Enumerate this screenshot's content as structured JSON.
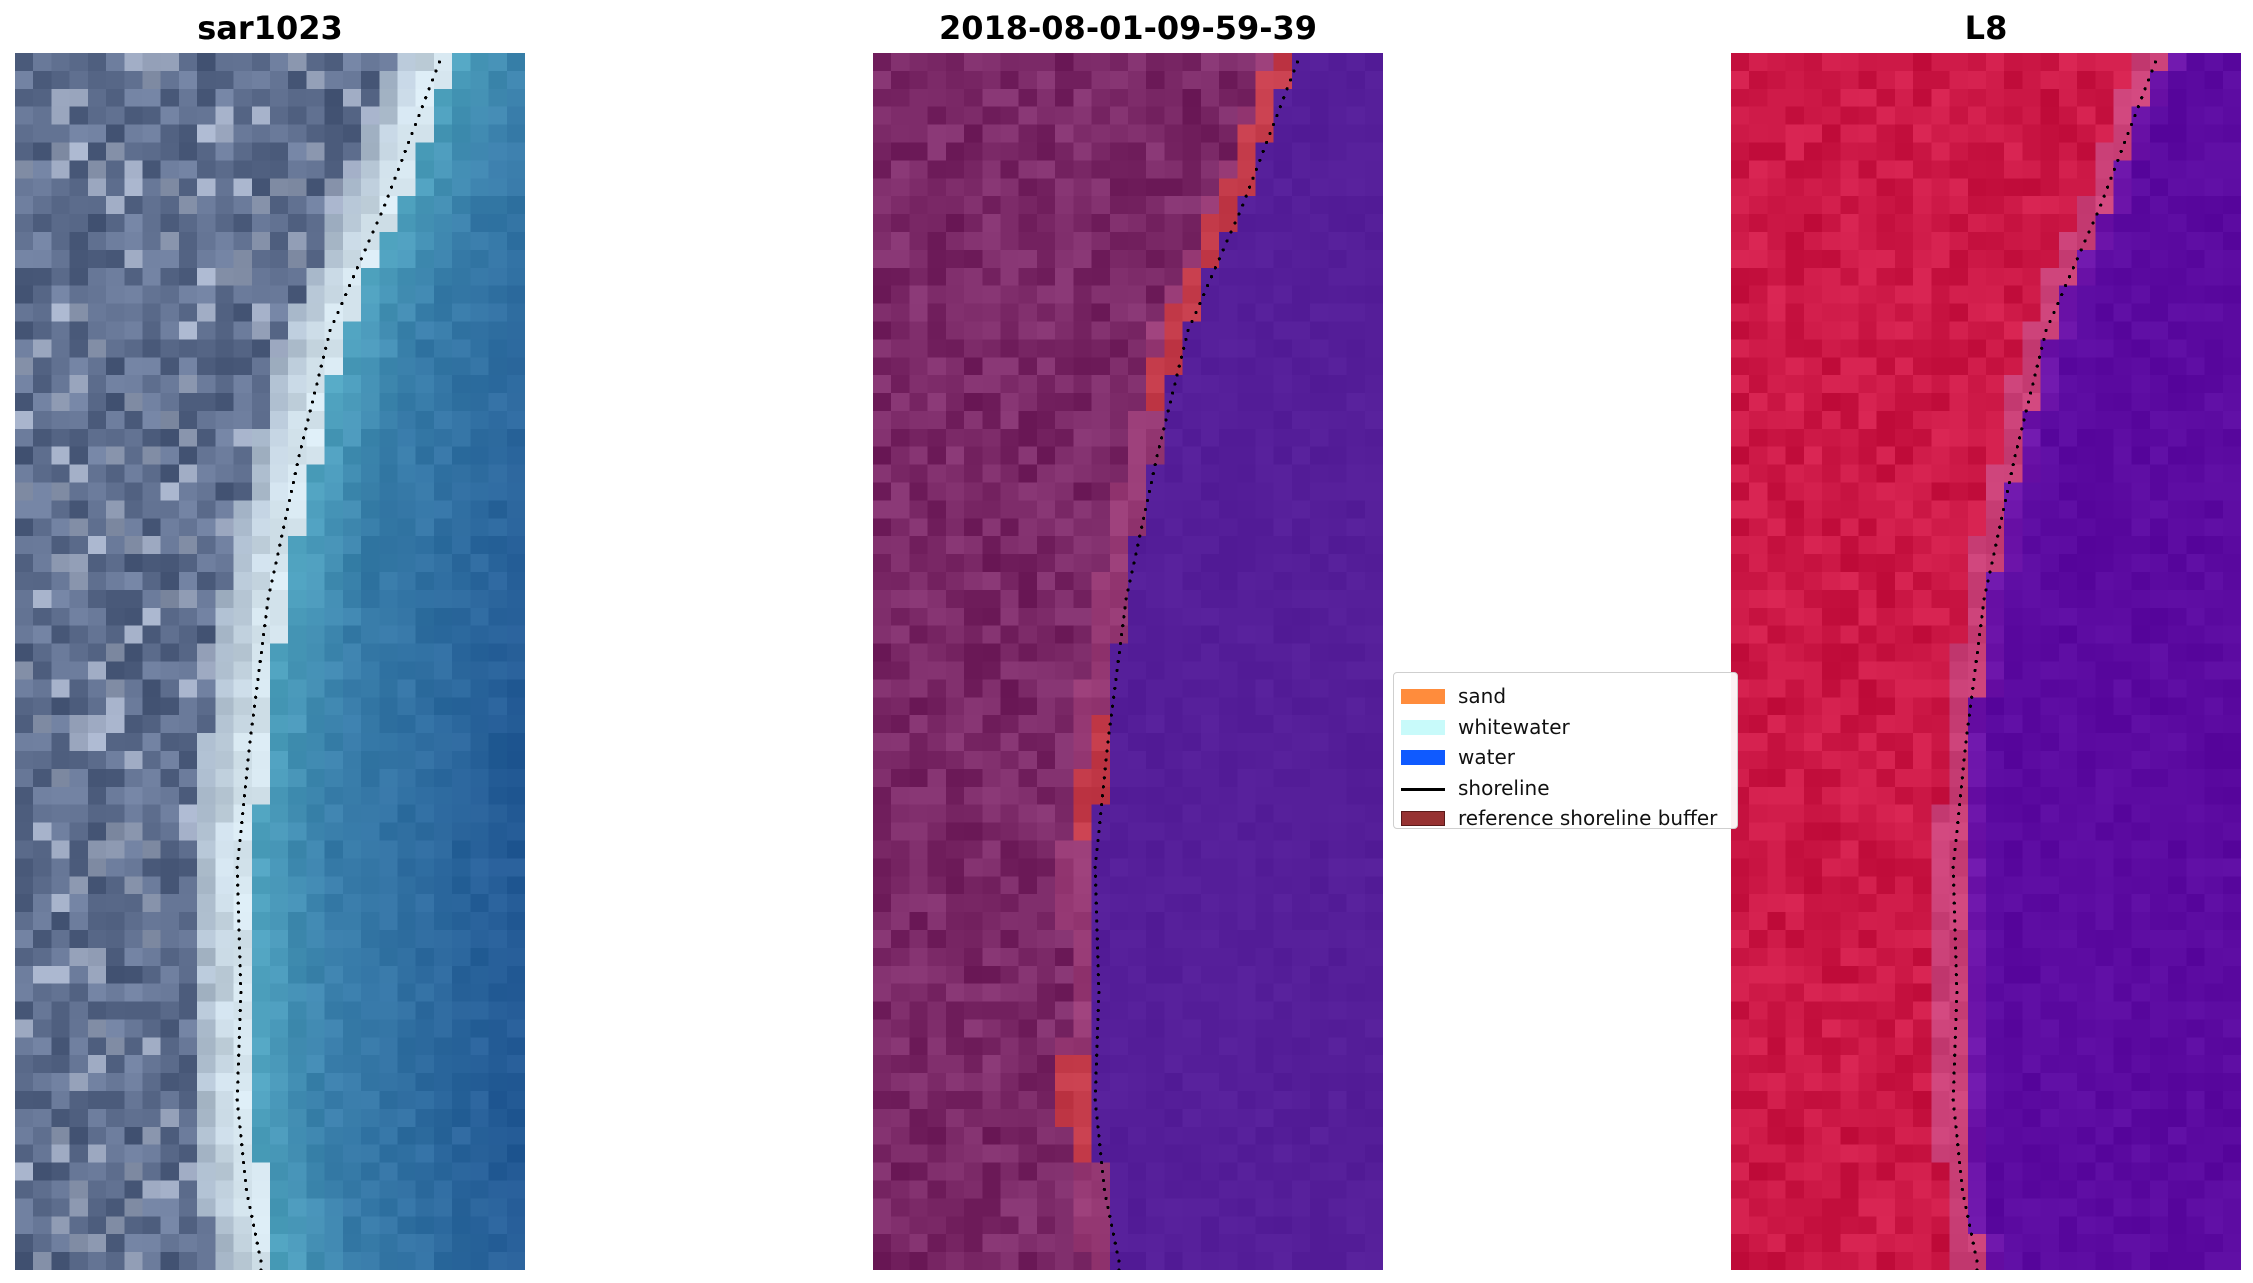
{
  "panels": [
    {
      "title": "sar1023",
      "image_type": "rgb"
    },
    {
      "title": "2018-08-01-09-59-39",
      "image_type": "classified"
    },
    {
      "title": "L8",
      "image_type": "nir-false-color"
    }
  ],
  "legend": {
    "items": [
      {
        "label": "sand",
        "type": "patch",
        "color": "#ff8c3c"
      },
      {
        "label": "whitewater",
        "type": "patch",
        "color": "#c8fafa"
      },
      {
        "label": "water",
        "type": "patch",
        "color": "#0f5aff"
      },
      {
        "label": "shoreline",
        "type": "line",
        "color": "#000000"
      },
      {
        "label": "reference shoreline buffer",
        "type": "patch",
        "color": "#963232"
      }
    ]
  },
  "colors": {
    "rgb_land": "#5c6c8c",
    "rgb_beach": "#d6e6ef",
    "rgb_surf": "#4fa3bf",
    "rgb_water": "#245b96",
    "classified_land": "#7a2866",
    "classified_water": "#551e99",
    "classified_buffer": "#c43b4a",
    "nir_land": "#cc1846",
    "nir_water": "#5b0aa0"
  }
}
